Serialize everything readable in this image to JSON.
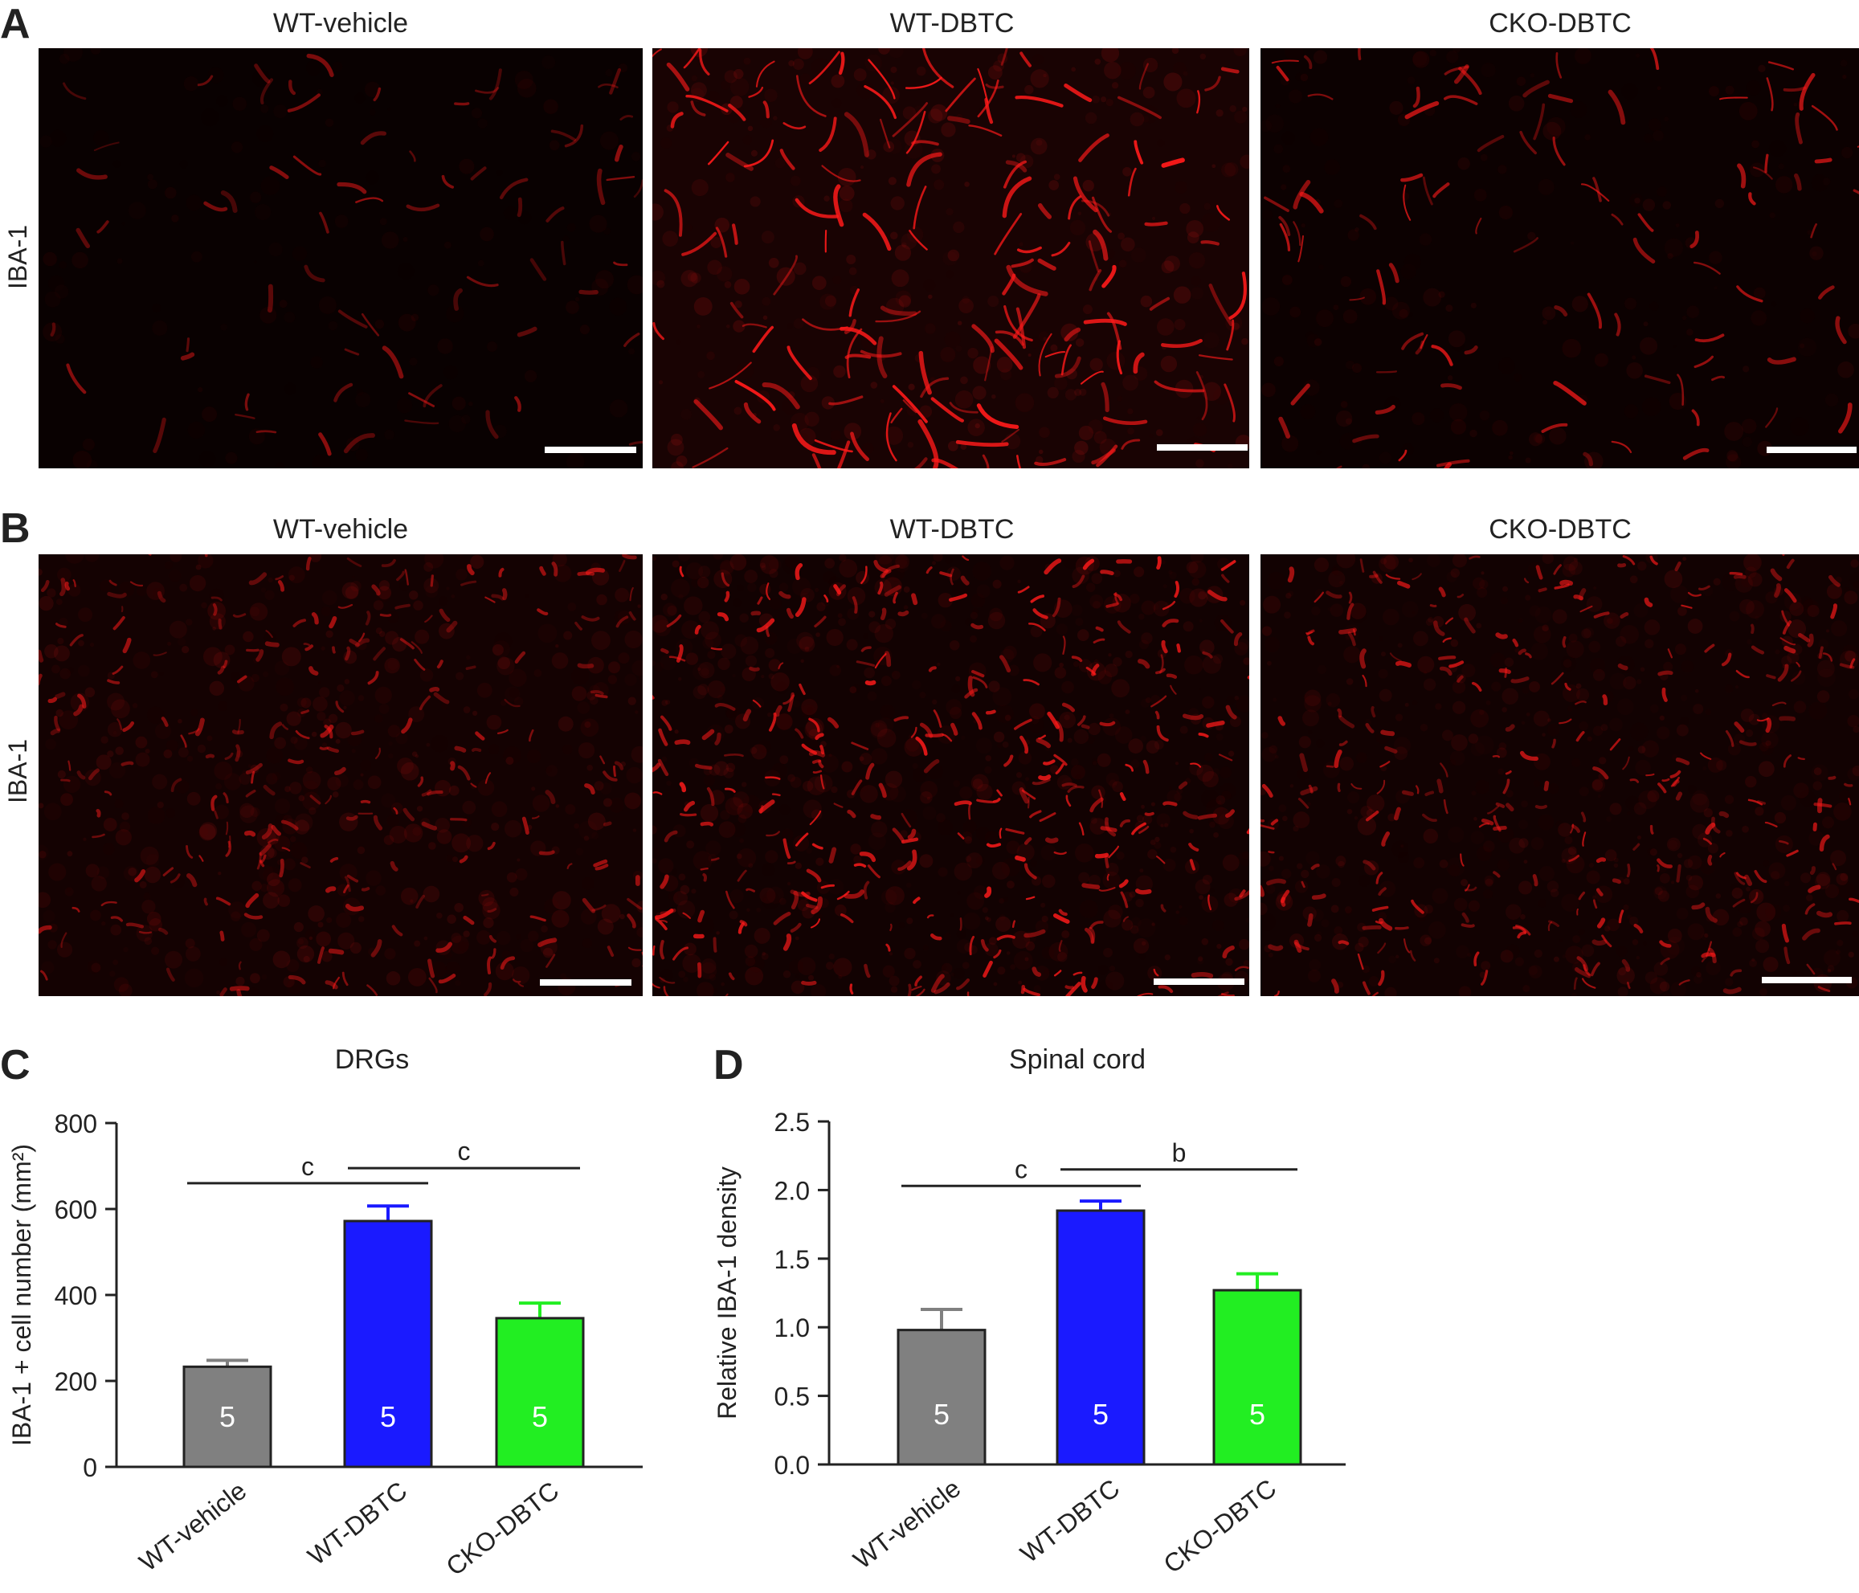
{
  "panels": {
    "a": {
      "letter": "A",
      "row_label": "IBA-1",
      "titles": [
        "WT-vehicle",
        "WT-DBTC",
        "CKO-DBTC"
      ]
    },
    "b": {
      "letter": "B",
      "row_label": "IBA-1",
      "titles": [
        "WT-vehicle",
        "WT-DBTC",
        "CKO-DBTC"
      ]
    },
    "c": {
      "letter": "C"
    },
    "d": {
      "letter": "D"
    }
  },
  "colors": {
    "gray": "#808080",
    "blue": "#1a1aff",
    "green": "#22ee22",
    "stain": "#ff1a1a",
    "background": "#000000"
  },
  "chart_data": [
    {
      "type": "bar",
      "title": "DRGs",
      "ylabel": "IBA-1 + cell number (mm²)",
      "xlabel": "",
      "categories": [
        "WT-vehicle",
        "WT-DBTC",
        "CKO-DBTC"
      ],
      "values": [
        233,
        572,
        346
      ],
      "errors": [
        15,
        35,
        35
      ],
      "n_labels": [
        "5",
        "5",
        "5"
      ],
      "colors": [
        "#808080",
        "#1a1aff",
        "#22ee22"
      ],
      "ylim": [
        0,
        800
      ],
      "yticks": [
        0,
        200,
        400,
        600,
        800
      ],
      "yticklabels": [
        "0",
        "200",
        "400",
        "600",
        "800"
      ],
      "significance": [
        {
          "from": 0,
          "to": 1,
          "label": "c",
          "y": 660
        },
        {
          "from": 1,
          "to": 2,
          "label": "c",
          "y": 695
        }
      ]
    },
    {
      "type": "bar",
      "title": "Spinal cord",
      "ylabel": "Relative IBA-1 density",
      "xlabel": "",
      "categories": [
        "WT-vehicle",
        "WT-DBTC",
        "CKO-DBTC"
      ],
      "values": [
        0.98,
        1.85,
        1.27
      ],
      "errors": [
        0.15,
        0.07,
        0.12
      ],
      "n_labels": [
        "5",
        "5",
        "5"
      ],
      "colors": [
        "#808080",
        "#1a1aff",
        "#22ee22"
      ],
      "ylim": [
        0,
        2.5
      ],
      "yticks": [
        0,
        0.5,
        1.0,
        1.5,
        2.0,
        2.5
      ],
      "yticklabels": [
        "0.0",
        "0.5",
        "1.0",
        "1.5",
        "2.0",
        "2.5"
      ],
      "significance": [
        {
          "from": 0,
          "to": 1,
          "label": "c",
          "y": 2.03
        },
        {
          "from": 1,
          "to": 2,
          "label": "b",
          "y": 2.15
        }
      ]
    }
  ]
}
